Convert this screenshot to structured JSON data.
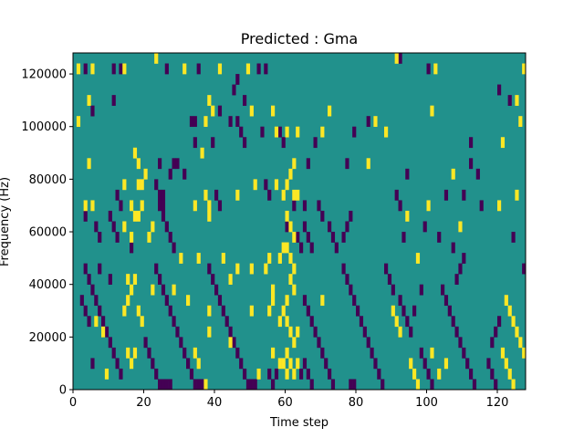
{
  "chart_data": {
    "type": "heatmap",
    "title": "Predicted : Gma",
    "xlabel": "Time step",
    "ylabel": "Frequency (Hz)",
    "xlim": [
      0,
      128
    ],
    "ylim": [
      0,
      128000
    ],
    "x_ticks": [
      0,
      20,
      40,
      60,
      80,
      100,
      120
    ],
    "y_ticks": [
      0,
      20000,
      40000,
      60000,
      80000,
      100000,
      120000
    ],
    "x_tick_labels": [
      "0",
      "20",
      "40",
      "60",
      "80",
      "100",
      "120"
    ],
    "y_tick_labels": [
      "0",
      "20000",
      "40000",
      "60000",
      "80000",
      "100000",
      "120000"
    ],
    "grid": false,
    "colors": {
      "low": "#440154",
      "mid": "#21918c",
      "high": "#fde725"
    },
    "cell_height_hz": 4000,
    "background_value": "mid",
    "high_cells": [
      [
        1,
        120000
      ],
      [
        5,
        120000
      ],
      [
        14,
        120000
      ],
      [
        23,
        124000
      ],
      [
        31,
        120000
      ],
      [
        41,
        120000
      ],
      [
        49,
        120000
      ],
      [
        91,
        124000
      ],
      [
        102,
        120000
      ],
      [
        127,
        120000
      ],
      [
        4,
        108000
      ],
      [
        38,
        108000
      ],
      [
        39,
        104000
      ],
      [
        50,
        104000
      ],
      [
        56,
        104000
      ],
      [
        72,
        104000
      ],
      [
        101,
        104000
      ],
      [
        125,
        108000
      ],
      [
        1,
        100000
      ],
      [
        37,
        100000
      ],
      [
        57,
        96000
      ],
      [
        60,
        96000
      ],
      [
        63,
        96000
      ],
      [
        70,
        96000
      ],
      [
        85,
        100000
      ],
      [
        88,
        96000
      ],
      [
        126,
        100000
      ],
      [
        121,
        92000
      ],
      [
        17,
        88000
      ],
      [
        36,
        88000
      ],
      [
        18,
        84000
      ],
      [
        62,
        84000
      ],
      [
        83,
        84000
      ],
      [
        4,
        84000
      ],
      [
        14,
        76000
      ],
      [
        18,
        76000
      ],
      [
        19,
        76000
      ],
      [
        20,
        80000
      ],
      [
        37,
        72000
      ],
      [
        46,
        72000
      ],
      [
        51,
        76000
      ],
      [
        57,
        76000
      ],
      [
        59,
        72000
      ],
      [
        60,
        76000
      ],
      [
        61,
        80000
      ],
      [
        62,
        72000
      ],
      [
        63,
        72000
      ],
      [
        107,
        80000
      ],
      [
        3,
        68000
      ],
      [
        5,
        68000
      ],
      [
        16,
        68000
      ],
      [
        17,
        64000
      ],
      [
        18,
        64000
      ],
      [
        19,
        68000
      ],
      [
        34,
        68000
      ],
      [
        38,
        68000
      ],
      [
        100,
        68000
      ],
      [
        120,
        68000
      ],
      [
        125,
        72000
      ],
      [
        14,
        60000
      ],
      [
        16,
        56000
      ],
      [
        21,
        56000
      ],
      [
        22,
        60000
      ],
      [
        38,
        64000
      ],
      [
        60,
        64000
      ],
      [
        61,
        60000
      ],
      [
        62,
        56000
      ],
      [
        94,
        64000
      ],
      [
        109,
        60000
      ],
      [
        30,
        48000
      ],
      [
        35,
        48000
      ],
      [
        42,
        48000
      ],
      [
        46,
        44000
      ],
      [
        50,
        44000
      ],
      [
        54,
        44000
      ],
      [
        55,
        48000
      ],
      [
        58,
        48000
      ],
      [
        59,
        52000
      ],
      [
        60,
        52000
      ],
      [
        61,
        48000
      ],
      [
        62,
        44000
      ],
      [
        97,
        48000
      ],
      [
        15,
        40000
      ],
      [
        16,
        36000
      ],
      [
        17,
        40000
      ],
      [
        22,
        36000
      ],
      [
        28,
        36000
      ],
      [
        32,
        32000
      ],
      [
        44,
        40000
      ],
      [
        56,
        36000
      ],
      [
        61,
        40000
      ],
      [
        62,
        36000
      ],
      [
        60,
        32000
      ],
      [
        14,
        28000
      ],
      [
        15,
        32000
      ],
      [
        18,
        28000
      ],
      [
        19,
        24000
      ],
      [
        38,
        28000
      ],
      [
        50,
        28000
      ],
      [
        55,
        28000
      ],
      [
        56,
        32000
      ],
      [
        58,
        24000
      ],
      [
        59,
        28000
      ],
      [
        60,
        24000
      ],
      [
        61,
        20000
      ],
      [
        62,
        16000
      ],
      [
        63,
        20000
      ],
      [
        70,
        32000
      ],
      [
        90,
        28000
      ],
      [
        91,
        24000
      ],
      [
        92,
        20000
      ],
      [
        122,
        32000
      ],
      [
        123,
        28000
      ],
      [
        124,
        24000
      ],
      [
        125,
        20000
      ],
      [
        126,
        16000
      ],
      [
        6,
        24000
      ],
      [
        8,
        20000
      ],
      [
        15,
        12000
      ],
      [
        16,
        8000
      ],
      [
        17,
        12000
      ],
      [
        34,
        12000
      ],
      [
        35,
        8000
      ],
      [
        38,
        20000
      ],
      [
        44,
        16000
      ],
      [
        56,
        12000
      ],
      [
        58,
        8000
      ],
      [
        60,
        12000
      ],
      [
        61,
        8000
      ],
      [
        62,
        4000
      ],
      [
        63,
        8000
      ],
      [
        95,
        8000
      ],
      [
        96,
        4000
      ],
      [
        97,
        0
      ],
      [
        101,
        12000
      ],
      [
        105,
        8000
      ],
      [
        121,
        12000
      ],
      [
        122,
        8000
      ],
      [
        123,
        4000
      ],
      [
        124,
        0
      ],
      [
        127,
        12000
      ],
      [
        9,
        4000
      ],
      [
        37,
        0
      ],
      [
        52,
        4000
      ],
      [
        103,
        4000
      ],
      [
        59,
        8000
      ],
      [
        60,
        4000
      ]
    ],
    "low_cells": [
      [
        3,
        120000
      ],
      [
        11,
        120000
      ],
      [
        13,
        120000
      ],
      [
        26,
        120000
      ],
      [
        35,
        120000
      ],
      [
        54,
        120000
      ],
      [
        92,
        124000
      ],
      [
        100,
        120000
      ],
      [
        5,
        104000
      ],
      [
        11,
        108000
      ],
      [
        45,
        112000
      ],
      [
        46,
        116000
      ],
      [
        48,
        108000
      ],
      [
        52,
        120000
      ],
      [
        120,
        112000
      ],
      [
        123,
        108000
      ],
      [
        33,
        100000
      ],
      [
        34,
        100000
      ],
      [
        41,
        104000
      ],
      [
        44,
        100000
      ],
      [
        46,
        100000
      ],
      [
        47,
        96000
      ],
      [
        48,
        92000
      ],
      [
        53,
        96000
      ],
      [
        58,
        96000
      ],
      [
        59,
        92000
      ],
      [
        68,
        92000
      ],
      [
        79,
        96000
      ],
      [
        83,
        100000
      ],
      [
        112,
        92000
      ],
      [
        34,
        92000
      ],
      [
        39,
        92000
      ],
      [
        24,
        84000
      ],
      [
        27,
        80000
      ],
      [
        28,
        84000
      ],
      [
        29,
        84000
      ],
      [
        31,
        80000
      ],
      [
        66,
        84000
      ],
      [
        77,
        84000
      ],
      [
        94,
        80000
      ],
      [
        112,
        84000
      ],
      [
        114,
        80000
      ],
      [
        23,
        76000
      ],
      [
        24,
        72000
      ],
      [
        25,
        72000
      ],
      [
        24,
        68000
      ],
      [
        25,
        68000
      ],
      [
        12,
        72000
      ],
      [
        13,
        68000
      ],
      [
        40,
        72000
      ],
      [
        41,
        68000
      ],
      [
        54,
        76000
      ],
      [
        55,
        72000
      ],
      [
        62,
        68000
      ],
      [
        65,
        68000
      ],
      [
        69,
        68000
      ],
      [
        70,
        64000
      ],
      [
        91,
        72000
      ],
      [
        92,
        68000
      ],
      [
        105,
        72000
      ],
      [
        110,
        72000
      ],
      [
        115,
        68000
      ],
      [
        3,
        64000
      ],
      [
        6,
        60000
      ],
      [
        7,
        56000
      ],
      [
        10,
        64000
      ],
      [
        11,
        60000
      ],
      [
        12,
        56000
      ],
      [
        16,
        52000
      ],
      [
        25,
        64000
      ],
      [
        26,
        60000
      ],
      [
        27,
        56000
      ],
      [
        28,
        52000
      ],
      [
        60,
        60000
      ],
      [
        63,
        56000
      ],
      [
        64,
        52000
      ],
      [
        65,
        60000
      ],
      [
        66,
        56000
      ],
      [
        67,
        52000
      ],
      [
        72,
        60000
      ],
      [
        73,
        56000
      ],
      [
        74,
        52000
      ],
      [
        76,
        56000
      ],
      [
        77,
        60000
      ],
      [
        78,
        64000
      ],
      [
        93,
        56000
      ],
      [
        99,
        60000
      ],
      [
        103,
        56000
      ],
      [
        107,
        52000
      ],
      [
        124,
        56000
      ],
      [
        3,
        44000
      ],
      [
        4,
        40000
      ],
      [
        5,
        36000
      ],
      [
        6,
        32000
      ],
      [
        7,
        28000
      ],
      [
        8,
        24000
      ],
      [
        9,
        20000
      ],
      [
        10,
        16000
      ],
      [
        11,
        12000
      ],
      [
        12,
        8000
      ],
      [
        13,
        4000
      ],
      [
        7,
        44000
      ],
      [
        10,
        40000
      ],
      [
        23,
        44000
      ],
      [
        24,
        40000
      ],
      [
        25,
        36000
      ],
      [
        26,
        32000
      ],
      [
        27,
        28000
      ],
      [
        28,
        24000
      ],
      [
        29,
        20000
      ],
      [
        30,
        16000
      ],
      [
        31,
        12000
      ],
      [
        32,
        8000
      ],
      [
        33,
        4000
      ],
      [
        34,
        0
      ],
      [
        38,
        44000
      ],
      [
        39,
        40000
      ],
      [
        40,
        36000
      ],
      [
        41,
        32000
      ],
      [
        42,
        28000
      ],
      [
        43,
        24000
      ],
      [
        44,
        20000
      ],
      [
        45,
        16000
      ],
      [
        46,
        12000
      ],
      [
        47,
        8000
      ],
      [
        48,
        4000
      ],
      [
        49,
        0
      ],
      [
        50,
        0
      ],
      [
        51,
        0
      ],
      [
        55,
        4000
      ],
      [
        56,
        0
      ],
      [
        57,
        4000
      ],
      [
        65,
        32000
      ],
      [
        66,
        28000
      ],
      [
        67,
        24000
      ],
      [
        68,
        20000
      ],
      [
        69,
        16000
      ],
      [
        70,
        12000
      ],
      [
        71,
        8000
      ],
      [
        72,
        4000
      ],
      [
        73,
        0
      ],
      [
        76,
        44000
      ],
      [
        77,
        40000
      ],
      [
        78,
        36000
      ],
      [
        79,
        32000
      ],
      [
        80,
        28000
      ],
      [
        81,
        24000
      ],
      [
        82,
        20000
      ],
      [
        83,
        16000
      ],
      [
        84,
        12000
      ],
      [
        85,
        8000
      ],
      [
        86,
        4000
      ],
      [
        87,
        0
      ],
      [
        88,
        44000
      ],
      [
        89,
        40000
      ],
      [
        90,
        36000
      ],
      [
        92,
        32000
      ],
      [
        93,
        28000
      ],
      [
        94,
        24000
      ],
      [
        95,
        20000
      ],
      [
        98,
        12000
      ],
      [
        99,
        8000
      ],
      [
        100,
        4000
      ],
      [
        101,
        0
      ],
      [
        104,
        36000
      ],
      [
        105,
        32000
      ],
      [
        106,
        28000
      ],
      [
        107,
        24000
      ],
      [
        108,
        20000
      ],
      [
        109,
        16000
      ],
      [
        110,
        12000
      ],
      [
        111,
        8000
      ],
      [
        112,
        4000
      ],
      [
        113,
        0
      ],
      [
        2,
        32000
      ],
      [
        3,
        28000
      ],
      [
        4,
        24000
      ],
      [
        5,
        8000
      ],
      [
        20,
        16000
      ],
      [
        21,
        12000
      ],
      [
        22,
        8000
      ],
      [
        23,
        4000
      ],
      [
        24,
        0
      ],
      [
        25,
        0
      ],
      [
        26,
        0
      ],
      [
        27,
        0
      ],
      [
        35,
        0
      ],
      [
        36,
        0
      ],
      [
        64,
        4000
      ],
      [
        65,
        8000
      ],
      [
        66,
        4000
      ],
      [
        67,
        0
      ],
      [
        78,
        0
      ],
      [
        79,
        0
      ],
      [
        117,
        8000
      ],
      [
        118,
        4000
      ],
      [
        119,
        0
      ],
      [
        118,
        16000
      ],
      [
        119,
        20000
      ],
      [
        120,
        24000
      ],
      [
        127,
        44000
      ],
      [
        98,
        36000
      ],
      [
        96,
        28000
      ],
      [
        108,
        40000
      ],
      [
        109,
        44000
      ],
      [
        110,
        48000
      ]
    ]
  }
}
